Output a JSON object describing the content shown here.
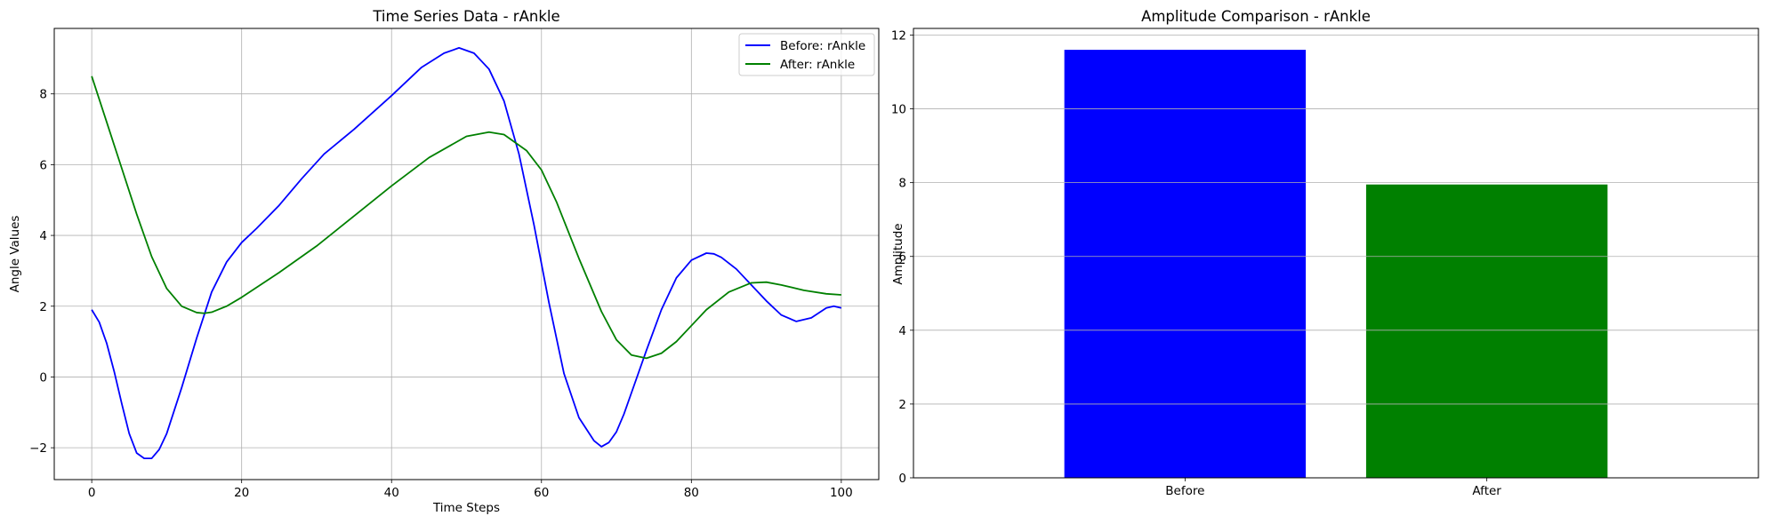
{
  "chart_data": [
    {
      "type": "line",
      "title": "Time Series Data - rAnkle",
      "xlabel": "Time Steps",
      "ylabel": "Angle Values",
      "xlim": [
        -5,
        105
      ],
      "ylim": [
        -2.9,
        9.85
      ],
      "xticks": [
        0,
        20,
        40,
        60,
        80,
        100
      ],
      "yticks": [
        -2,
        0,
        2,
        4,
        6,
        8
      ],
      "xtick_labels": [
        "0",
        "20",
        "40",
        "60",
        "80",
        "100"
      ],
      "ytick_labels": [
        "−2",
        "0",
        "2",
        "4",
        "6",
        "8"
      ],
      "grid": true,
      "legend": "top-right",
      "series": [
        {
          "name": "Before: rAnkle",
          "color": "#0000ff",
          "x": [
            0,
            1,
            2,
            3,
            4,
            5,
            6,
            7,
            8,
            9,
            10,
            12,
            14,
            16,
            18,
            20,
            22,
            25,
            28,
            31,
            35,
            40,
            44,
            47,
            49,
            51,
            53,
            55,
            57,
            59,
            61,
            63,
            65,
            67,
            68,
            69,
            70,
            71,
            72,
            74,
            76,
            78,
            80,
            82,
            83,
            84,
            86,
            88,
            90,
            92,
            94,
            96,
            98,
            99,
            100
          ],
          "y": [
            1.9,
            1.55,
            0.95,
            0.15,
            -0.75,
            -1.6,
            -2.15,
            -2.3,
            -2.3,
            -2.05,
            -1.6,
            -0.3,
            1.1,
            2.4,
            3.25,
            3.8,
            4.2,
            4.85,
            5.6,
            6.3,
            7.0,
            7.95,
            8.75,
            9.15,
            9.3,
            9.15,
            8.7,
            7.8,
            6.3,
            4.3,
            2.1,
            0.1,
            -1.15,
            -1.8,
            -1.97,
            -1.85,
            -1.55,
            -1.05,
            -0.45,
            0.75,
            1.9,
            2.8,
            3.3,
            3.5,
            3.48,
            3.38,
            3.05,
            2.6,
            2.15,
            1.75,
            1.57,
            1.67,
            1.95,
            2.0,
            1.95
          ]
        },
        {
          "name": "After: rAnkle",
          "color": "#008000",
          "x": [
            0,
            2,
            4,
            6,
            8,
            10,
            12,
            14,
            15,
            16,
            18,
            20,
            25,
            30,
            35,
            40,
            45,
            50,
            53,
            55,
            58,
            60,
            62,
            65,
            68,
            70,
            72,
            74,
            76,
            78,
            80,
            82,
            85,
            88,
            90,
            92,
            95,
            98,
            100
          ],
          "y": [
            8.5,
            7.2,
            5.9,
            4.6,
            3.4,
            2.5,
            2.0,
            1.82,
            1.8,
            1.83,
            2.0,
            2.25,
            2.95,
            3.7,
            4.55,
            5.4,
            6.2,
            6.8,
            6.92,
            6.85,
            6.4,
            5.85,
            4.95,
            3.35,
            1.85,
            1.05,
            0.62,
            0.53,
            0.67,
            1.0,
            1.45,
            1.9,
            2.4,
            2.66,
            2.68,
            2.6,
            2.45,
            2.35,
            2.32
          ]
        }
      ]
    },
    {
      "type": "bar",
      "title": "Amplitude Comparison - rAnkle",
      "xlabel": "",
      "ylabel": "Amplitude",
      "categories": [
        "Before",
        "After"
      ],
      "values": [
        11.6,
        7.95
      ],
      "colors": [
        "#0000ff",
        "#008000"
      ],
      "ylim": [
        0,
        12.18
      ],
      "yticks": [
        0,
        2,
        4,
        6,
        8,
        10,
        12
      ],
      "ytick_labels": [
        "0",
        "2",
        "4",
        "6",
        "8",
        "10",
        "12"
      ],
      "grid": "y"
    }
  ]
}
